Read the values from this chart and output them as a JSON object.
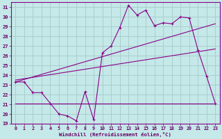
{
  "xlabel": "Windchill (Refroidissement éolien,°C)",
  "background_color": "#c5e8e8",
  "grid_color": "#aacece",
  "line_color": "#880088",
  "xlim": [
    -0.5,
    23.5
  ],
  "ylim": [
    19,
    31.5
  ],
  "yticks": [
    19,
    20,
    21,
    22,
    23,
    24,
    25,
    26,
    27,
    28,
    29,
    30,
    31
  ],
  "xticks": [
    0,
    1,
    2,
    3,
    4,
    5,
    6,
    7,
    8,
    9,
    10,
    11,
    12,
    13,
    14,
    15,
    16,
    17,
    18,
    19,
    20,
    21,
    22,
    23
  ],
  "series1_x": [
    0,
    1,
    2,
    3,
    4,
    5,
    6,
    7,
    8,
    9,
    10,
    11,
    12,
    13,
    14,
    15,
    16,
    17,
    18,
    19,
    20,
    21,
    22,
    23
  ],
  "series1_y": [
    23.3,
    23.3,
    22.2,
    22.2,
    21.1,
    20.0,
    19.8,
    19.3,
    22.3,
    19.4,
    26.3,
    27.0,
    28.9,
    31.2,
    30.2,
    30.7,
    29.1,
    29.4,
    29.3,
    30.0,
    29.9,
    26.6,
    23.9,
    21.1
  ],
  "series2_x": [
    0,
    23
  ],
  "series2_y": [
    23.3,
    29.3
  ],
  "series3_x": [
    0,
    16,
    23
  ],
  "series3_y": [
    21.1,
    21.1,
    21.1
  ],
  "series4_x": [
    0,
    23
  ],
  "series4_y": [
    23.5,
    26.7
  ],
  "text_color": "#660066"
}
